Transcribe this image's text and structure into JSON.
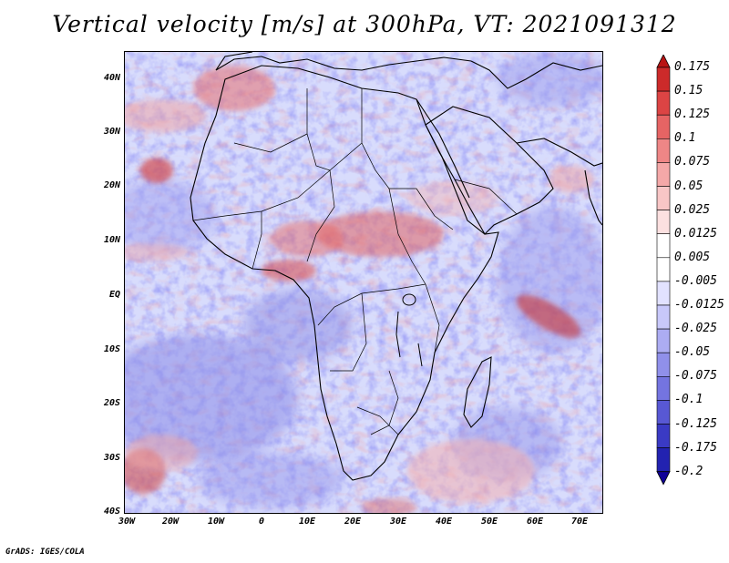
{
  "title": "Vertical velocity [m/s] at 300hPa, VT: 2021091312",
  "footer": "GrADS: IGES/COLA",
  "lat_labels": [
    "40N",
    "30N",
    "20N",
    "10N",
    "EQ",
    "10S",
    "20S",
    "30S",
    "40S"
  ],
  "lon_labels": [
    "30W",
    "20W",
    "10W",
    "0",
    "10E",
    "20E",
    "30E",
    "40E",
    "50E",
    "60E",
    "70E"
  ],
  "colorbar": {
    "labels": [
      "0.175",
      "0.15",
      "0.125",
      "0.1",
      "0.075",
      "0.05",
      "0.025",
      "0.0125",
      "0.005",
      "-0.005",
      "-0.0125",
      "-0.025",
      "-0.05",
      "-0.075",
      "-0.1",
      "-0.125",
      "-0.175",
      "-0.2"
    ],
    "colors": [
      "#b81414",
      "#cc2a2a",
      "#dc4444",
      "#e66464",
      "#ee8686",
      "#f4a8a8",
      "#f8c6c6",
      "#fce0e0",
      "#ffffff",
      "#ffffff",
      "#e2e2ff",
      "#c8c8fa",
      "#acacf2",
      "#9090ea",
      "#7474e0",
      "#5858d4",
      "#3a3ac4",
      "#2222b0",
      "#100098"
    ]
  },
  "chart_data": {
    "type": "heatmap",
    "variable": "Vertical velocity",
    "units": "m/s",
    "level": "300hPa",
    "valid_time": "2021091312",
    "lon_range": [
      -30,
      75
    ],
    "lat_range": [
      -40,
      45
    ]
  }
}
